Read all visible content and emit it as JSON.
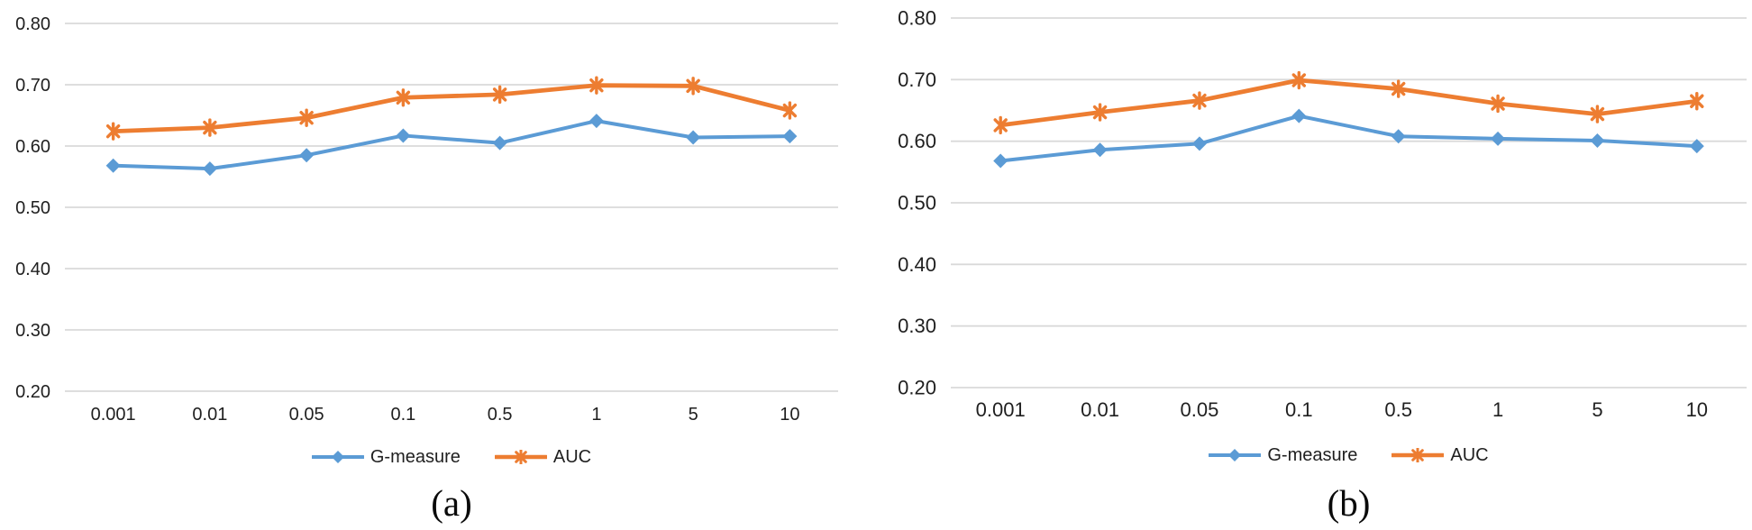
{
  "figure": {
    "background_color": "#ffffff",
    "grid_color": "#d9d9d9",
    "axis_text_color": "#1f1f1f"
  },
  "chart_data": [
    {
      "type": "line",
      "caption": "(a)",
      "title": "",
      "xlabel": "",
      "ylabel": "",
      "categories": [
        "0.001",
        "0.01",
        "0.05",
        "0.1",
        "0.5",
        "1",
        "5",
        "10"
      ],
      "series": [
        {
          "name": "G-measure",
          "color": "#5B9BD5",
          "marker": "diamond",
          "values": [
            0.568,
            0.563,
            0.585,
            0.617,
            0.605,
            0.641,
            0.614,
            0.616
          ]
        },
        {
          "name": "AUC",
          "color": "#ED7D31",
          "marker": "asterisk",
          "values": [
            0.624,
            0.63,
            0.646,
            0.679,
            0.684,
            0.699,
            0.698,
            0.658
          ]
        }
      ],
      "ylim": [
        0.2,
        0.8
      ],
      "ytick_step": 0.1,
      "ytick_labels": [
        "0.80",
        "0.70",
        "0.60",
        "0.50",
        "0.40",
        "0.30",
        "0.20"
      ],
      "grid": "horizontal",
      "legend_position": "bottom"
    },
    {
      "type": "line",
      "caption": "(b)",
      "title": "",
      "xlabel": "",
      "ylabel": "",
      "categories": [
        "0.001",
        "0.01",
        "0.05",
        "0.1",
        "0.5",
        "1",
        "5",
        "10"
      ],
      "series": [
        {
          "name": "G-measure",
          "color": "#5B9BD5",
          "marker": "diamond",
          "values": [
            0.568,
            0.586,
            0.596,
            0.641,
            0.608,
            0.604,
            0.601,
            0.592
          ]
        },
        {
          "name": "AUC",
          "color": "#ED7D31",
          "marker": "asterisk",
          "values": [
            0.626,
            0.647,
            0.666,
            0.699,
            0.685,
            0.661,
            0.644,
            0.665
          ]
        }
      ],
      "ylim": [
        0.2,
        0.8
      ],
      "ytick_step": 0.1,
      "ytick_labels": [
        "0.80",
        "0.70",
        "0.60",
        "0.50",
        "0.40",
        "0.30",
        "0.20"
      ],
      "grid": "horizontal",
      "legend_position": "bottom"
    }
  ]
}
